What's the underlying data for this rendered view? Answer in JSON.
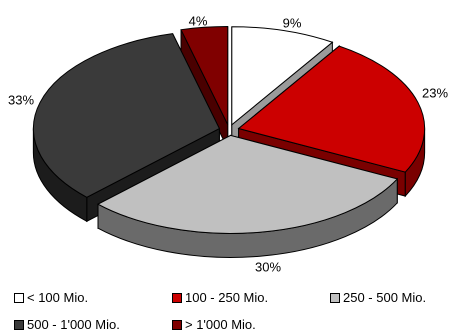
{
  "chart_data": {
    "type": "pie",
    "title": "",
    "style": "3d-exploded",
    "categories": [
      "< 100 Mio.",
      "100 - 250 Mio.",
      "250 - 500 Mio.",
      "500 - 1'000 Mio.",
      "> 1'000 Mio."
    ],
    "values": [
      9,
      23,
      30,
      33,
      4
    ],
    "value_labels": [
      "9%",
      "23%",
      "30%",
      "33%",
      "4%"
    ],
    "colors": [
      "#ffffff",
      "#cc0000",
      "#c0c0c0",
      "#3a3a3a",
      "#800000"
    ],
    "side_colors": [
      "#9a9a9a",
      "#7a0000",
      "#6a6a6a",
      "#1c1c1c",
      "#4a0000"
    ],
    "legend_position": "bottom"
  }
}
